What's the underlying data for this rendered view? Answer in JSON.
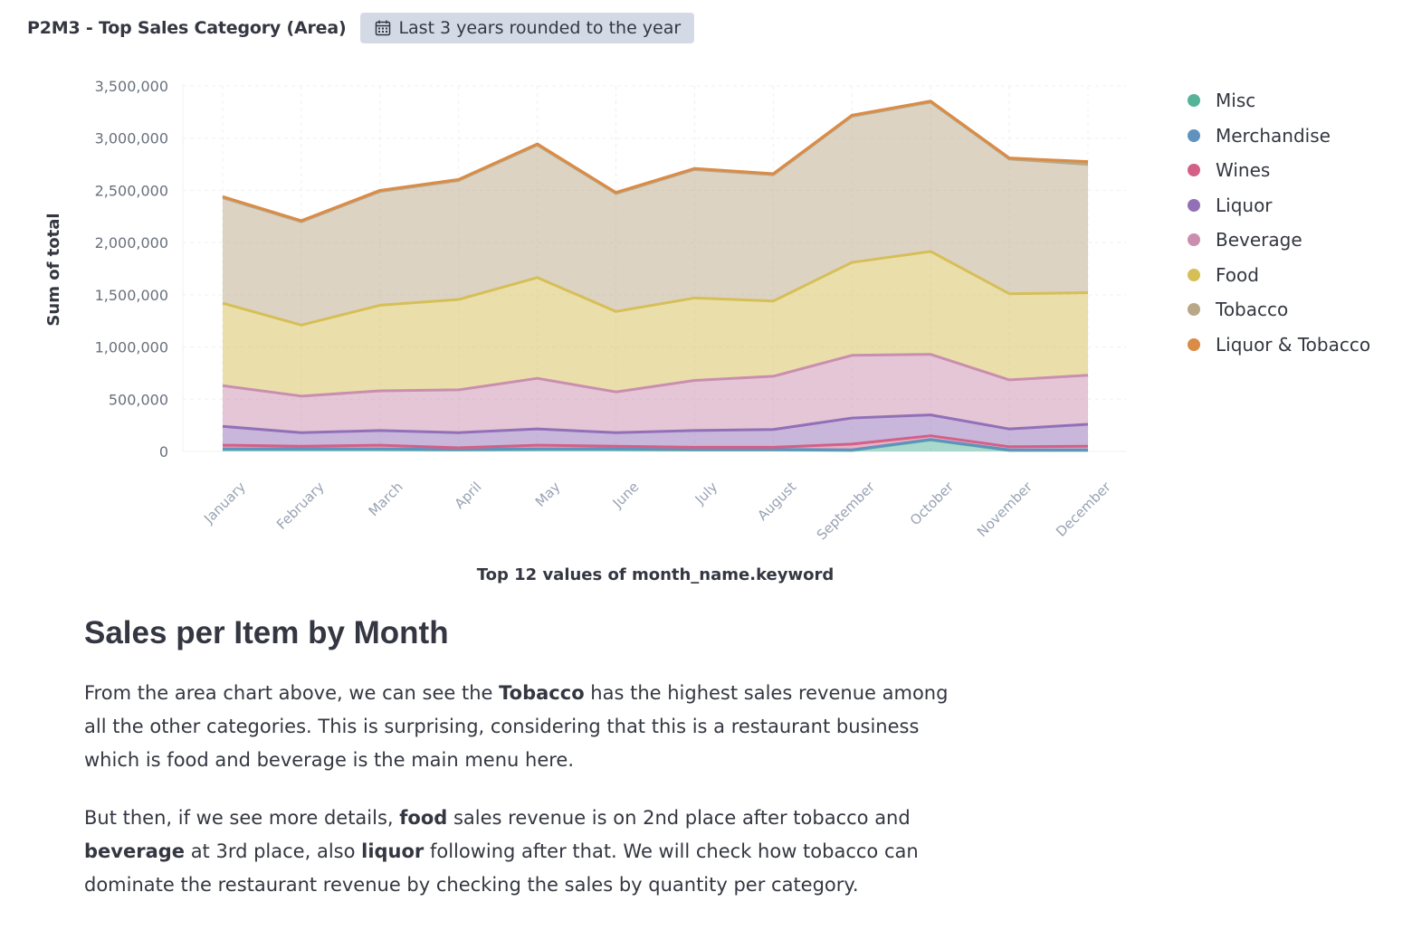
{
  "panel": {
    "title": "P2M3 - Top Sales Category (Area)",
    "time_range": "Last 3 years rounded to the year",
    "calendar_icon": "calendar-icon"
  },
  "chart_data": {
    "type": "area",
    "stacked": true,
    "categories": [
      "January",
      "February",
      "March",
      "April",
      "May",
      "June",
      "July",
      "August",
      "September",
      "October",
      "November",
      "December"
    ],
    "ylabel": "Sum of total",
    "xlabel": "Top 12 values of month_name.keyword",
    "ylim": [
      0,
      3500000
    ],
    "yticks": [
      0,
      500000,
      1000000,
      1500000,
      2000000,
      2500000,
      3000000,
      3500000
    ],
    "ytick_labels": [
      "0",
      "500,000",
      "1,000,000",
      "1,500,000",
      "2,000,000",
      "2,500,000",
      "3,000,000",
      "3,500,000"
    ],
    "grid": true,
    "legend_position": "right",
    "series": [
      {
        "name": "Misc",
        "color": "#54b399",
        "values": [
          20000,
          20000,
          20000,
          15000,
          20000,
          20000,
          15000,
          15000,
          10000,
          110000,
          10000,
          10000
        ]
      },
      {
        "name": "Merchandise",
        "color": "#6092c0",
        "values": [
          5000,
          5000,
          5000,
          5000,
          5000,
          5000,
          5000,
          5000,
          5000,
          5000,
          5000,
          5000
        ]
      },
      {
        "name": "Wines",
        "color": "#d36086",
        "values": [
          35000,
          25000,
          35000,
          15000,
          35000,
          25000,
          20000,
          20000,
          55000,
          35000,
          30000,
          35000
        ]
      },
      {
        "name": "Liquor",
        "color": "#9170b8",
        "values": [
          180000,
          130000,
          140000,
          145000,
          155000,
          130000,
          160000,
          170000,
          250000,
          200000,
          170000,
          210000
        ]
      },
      {
        "name": "Beverage",
        "color": "#ca8eae",
        "values": [
          390000,
          350000,
          380000,
          410000,
          485000,
          390000,
          480000,
          510000,
          600000,
          580000,
          470000,
          470000
        ]
      },
      {
        "name": "Food",
        "color": "#d6bf57",
        "values": [
          790000,
          680000,
          820000,
          865000,
          965000,
          770000,
          790000,
          720000,
          890000,
          985000,
          825000,
          790000
        ]
      },
      {
        "name": "Tobacco",
        "color": "#b9a888",
        "values": [
          1010000,
          990000,
          1090000,
          1140000,
          1270000,
          1130000,
          1230000,
          1210000,
          1400000,
          1430000,
          1290000,
          1230000
        ]
      },
      {
        "name": "Liquor & Tobacco",
        "color": "#da8b45",
        "values": [
          10000,
          10000,
          10000,
          10000,
          10000,
          10000,
          10000,
          10000,
          10000,
          10000,
          10000,
          25000
        ]
      }
    ]
  },
  "article": {
    "heading": "Sales per Item by Month",
    "p1_a": "From the area chart above, we can see the ",
    "p1_b": "Tobacco",
    "p1_c": " has the highest sales revenue among all the other categories. This is surprising, considering that this is a restaurant business which is food and beverage is the main menu here.",
    "p2_a": "But then, if we see more details, ",
    "p2_b": "food",
    "p2_c": " sales revenue is on 2nd place after tobacco and ",
    "p2_d": "beverage",
    "p2_e": " at 3rd place, also ",
    "p2_f": "liquor",
    "p2_g": " following after that. We will check how tobacco can dominate the restaurant revenue by checking the sales by quantity per category."
  }
}
